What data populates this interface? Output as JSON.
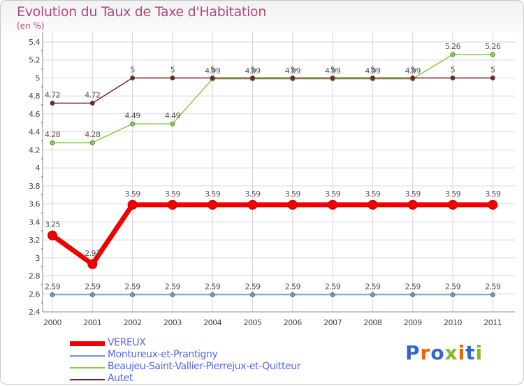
{
  "chart_data": {
    "type": "line",
    "title": "Evolution du Taux de Taxe d'Habitation",
    "ylabel": "(en %)",
    "categories": [
      "2000",
      "2001",
      "2002",
      "2003",
      "2004",
      "2005",
      "2006",
      "2007",
      "2008",
      "2009",
      "2010",
      "2011"
    ],
    "ylim": [
      2.4,
      5.4
    ],
    "yticks": [
      "2.4",
      "2.6",
      "2.8",
      "3",
      "3.2",
      "3.4",
      "3.6",
      "3.8",
      "4",
      "4.2",
      "4.4",
      "4.6",
      "4.8",
      "5",
      "5.2",
      "5.4"
    ],
    "series": [
      {
        "name": "VEREUX",
        "color": "#ee0000",
        "emphasis": true,
        "values": [
          3.25,
          2.93,
          3.59,
          3.59,
          3.59,
          3.59,
          3.59,
          3.59,
          3.59,
          3.59,
          3.59,
          3.59
        ],
        "labels": [
          "3.25",
          "2.93",
          "3.59",
          "3.59",
          "3.59",
          "3.59",
          "3.59",
          "3.59",
          "3.59",
          "3.59",
          "3.59",
          "3.59"
        ]
      },
      {
        "name": "Montureux-et-Prantigny",
        "color": "#6699cc",
        "emphasis": false,
        "values": [
          2.59,
          2.59,
          2.59,
          2.59,
          2.59,
          2.59,
          2.59,
          2.59,
          2.59,
          2.59,
          2.59,
          2.59
        ],
        "labels": [
          "2.59",
          "2.59",
          "2.59",
          "2.59",
          "2.59",
          "2.59",
          "2.59",
          "2.59",
          "2.59",
          "2.59",
          "2.59",
          "2.59"
        ]
      },
      {
        "name": "Beaujeu-Saint-Vallier-Pierrejux-et-Quitteur",
        "color": "#88cc44",
        "emphasis": false,
        "values": [
          4.28,
          4.28,
          4.49,
          4.49,
          4.99,
          4.99,
          4.99,
          4.99,
          4.99,
          4.99,
          5.26,
          5.26
        ],
        "labels": [
          "4.28",
          "4.28",
          "4.49",
          "4.49",
          "4.99",
          "4.99",
          "4.99",
          "4.99",
          "4.99",
          "4.99",
          "5.26",
          "5.26"
        ]
      },
      {
        "name": "Autet",
        "color": "#772222",
        "emphasis": false,
        "values": [
          4.72,
          4.72,
          5,
          5,
          5,
          5,
          5,
          5,
          5,
          5,
          5,
          5
        ],
        "labels": [
          "4.72",
          "4.72",
          "5",
          "5",
          "5",
          "5",
          "5",
          "5",
          "5",
          "5",
          "5",
          "5"
        ]
      }
    ]
  },
  "logo": {
    "text": "Proxiti",
    "letter_colors": [
      "#3366cc",
      "#ee6600",
      "#3366cc",
      "#88bb22",
      "#ee6600",
      "#3366cc",
      "#88bb22"
    ]
  }
}
